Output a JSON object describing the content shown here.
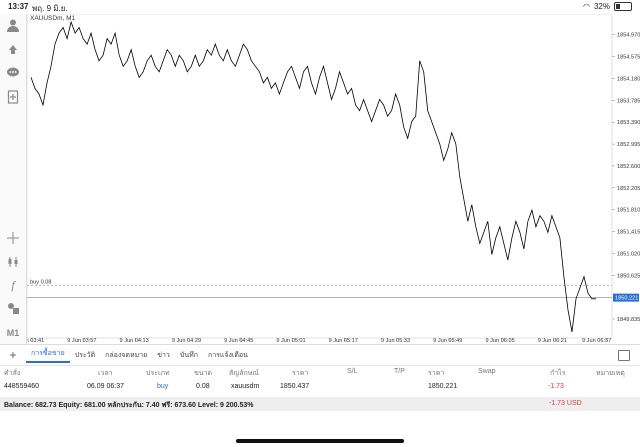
{
  "status_bar": {
    "time": "13:37",
    "date": "พฤ. 9 มิ.ย.",
    "battery": "32%",
    "battery_level": 0.32
  },
  "chart": {
    "symbol": "XAUUSDm, M1",
    "current_price": "1850.221",
    "order_line_label": "buy 0.08",
    "order_line_price": 1850.437,
    "price_labels": [
      "1854.970",
      "1854.575",
      "1854.180",
      "1853.785",
      "1853.390",
      "1852.995",
      "1852.600",
      "1852.205",
      "1851.810",
      "1851.415",
      "1851.020",
      "1850.625",
      "1850.221",
      "1849.835"
    ],
    "time_labels": [
      "9 Jun 03:41",
      "9 Jun 03:57",
      "9 Jun 04:13",
      "9 Jun 04:29",
      "9 Jun 04:45",
      "9 Jun 05:01",
      "9 Jun 05:17",
      "9 Jun 05:33",
      "9 Jun 05:49",
      "9 Jun 06:05",
      "9 Jun 06:21",
      "9 Jun 06:37"
    ],
    "price_min": 1849.6,
    "price_max": 1855.2,
    "series": [
      1854.2,
      1854.0,
      1853.9,
      1853.7,
      1854.1,
      1854.4,
      1854.8,
      1855.0,
      1855.1,
      1854.9,
      1855.2,
      1855.0,
      1855.1,
      1854.9,
      1854.8,
      1855.0,
      1854.7,
      1854.5,
      1854.6,
      1854.9,
      1854.8,
      1855.0,
      1854.6,
      1854.4,
      1854.5,
      1854.7,
      1854.4,
      1854.2,
      1854.3,
      1854.5,
      1854.6,
      1854.4,
      1854.3,
      1854.5,
      1854.7,
      1854.6,
      1854.4,
      1854.6,
      1854.5,
      1854.3,
      1854.4,
      1854.6,
      1854.4,
      1854.5,
      1854.7,
      1854.6,
      1854.8,
      1854.6,
      1854.5,
      1854.7,
      1854.5,
      1854.4,
      1854.6,
      1854.8,
      1854.7,
      1854.5,
      1854.4,
      1854.3,
      1854.1,
      1854.2,
      1854.0,
      1854.1,
      1853.9,
      1854.1,
      1854.3,
      1854.4,
      1854.2,
      1854.0,
      1854.3,
      1854.4,
      1854.1,
      1853.9,
      1854.2,
      1854.4,
      1854.1,
      1853.8,
      1854.0,
      1854.3,
      1854.1,
      1853.9,
      1854.0,
      1853.7,
      1853.6,
      1853.8,
      1853.6,
      1853.4,
      1853.6,
      1853.8,
      1853.7,
      1853.5,
      1853.6,
      1853.9,
      1853.7,
      1853.3,
      1853.1,
      1853.4,
      1853.5,
      1854.5,
      1854.3,
      1853.6,
      1853.4,
      1853.2,
      1853.0,
      1852.7,
      1852.9,
      1853.2,
      1853.0,
      1852.4,
      1852.0,
      1851.6,
      1851.9,
      1851.5,
      1851.2,
      1851.4,
      1851.6,
      1851.0,
      1851.3,
      1851.5,
      1851.2,
      1850.9,
      1851.3,
      1851.6,
      1851.4,
      1851.1,
      1851.6,
      1851.8,
      1851.5,
      1851.7,
      1851.6,
      1851.4,
      1851.7,
      1851.5,
      1851.3,
      1850.6,
      1850.0,
      1849.6,
      1850.2,
      1850.4,
      1850.6,
      1850.3,
      1850.2,
      1850.2
    ]
  },
  "toolbar_icons": [
    "account-icon",
    "trade-icon",
    "chat-icon",
    "new-document-icon",
    "crosshair-icon",
    "candlestick-icon",
    "indicator-icon",
    "objects-icon",
    "timeframe-label"
  ],
  "timeframe": "M1",
  "bottom_tabs": [
    "การซื้อขาย",
    "ประวัติ",
    "กล่องจดหมาย",
    "ข่าว",
    "บันทึก",
    "การแจ้งเตือน"
  ],
  "table": {
    "headers": [
      "คำสั่ง",
      "เวลา",
      "ประเภท",
      "ขนาด",
      "สัญลักษณ์",
      "ราคา",
      "S/L",
      "T/P",
      "ราคา",
      "Swap",
      "กำไร",
      "หมายเหตุ"
    ],
    "rows": [
      {
        "order": "448559460",
        "time": "06.09 06:37",
        "type": "buy",
        "volume": "0.08",
        "symbol": "xauusdm",
        "open_price": "1850.437",
        "sl": "",
        "tp": "",
        "price": "1850.221",
        "swap": "",
        "profit": "-1.73",
        "comment": ""
      }
    ]
  },
  "balance": {
    "text": "Balance: 682.73 Equity: 681.00 หลักประกัน: 7.40 ฟรี: 673.60 Level: 9 200.53%",
    "pl": "-1.73  USD"
  },
  "colors": {
    "line": "#000000",
    "accent": "#2a6fd1",
    "loss": "#e03b3b",
    "price_tag": "#2a6fd1"
  }
}
